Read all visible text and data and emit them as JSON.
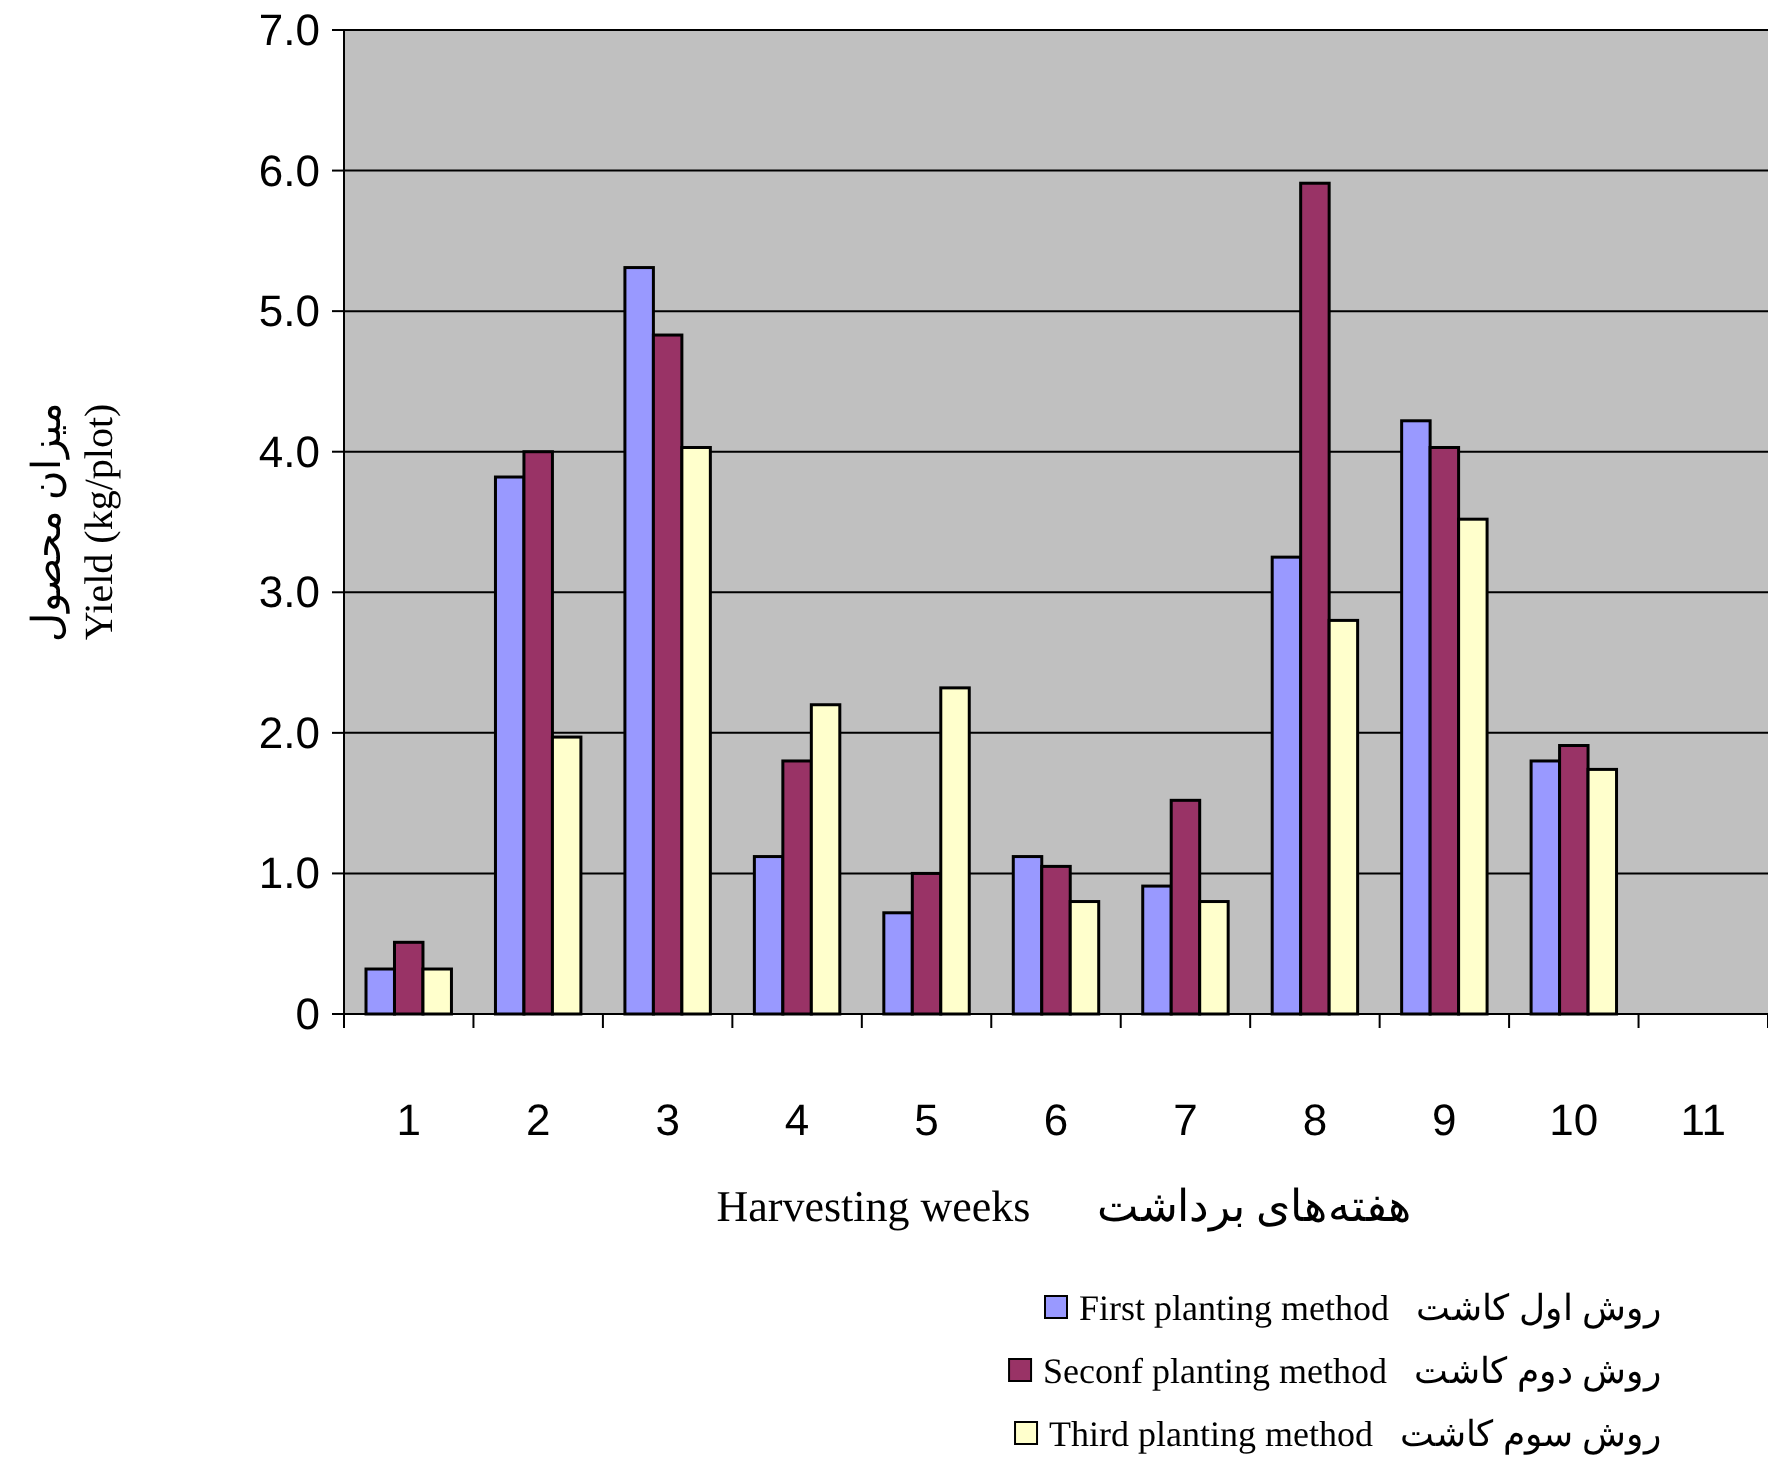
{
  "chart_data": {
    "type": "bar",
    "categories": [
      "1",
      "2",
      "3",
      "4",
      "5",
      "6",
      "7",
      "8",
      "9",
      "10",
      "11"
    ],
    "xlabel": "Harvesting weeks      هفته‌های برداشت",
    "ylabel": "میزان محصول\nYield (kg/plot)",
    "ylim": [
      0,
      7
    ],
    "yticks": [
      0,
      {
        "value": 1,
        "label": "1.0"
      },
      {
        "value": 2,
        "label": "2.0"
      },
      {
        "value": 3,
        "label": "3.0"
      },
      {
        "value": 4,
        "label": "4.0"
      },
      {
        "value": 5,
        "label": "5.0"
      },
      {
        "value": 6,
        "label": "6.0"
      },
      {
        "value": 7,
        "label": "7.0"
      }
    ],
    "grid": "y",
    "legend": "bottom",
    "series": [
      {
        "name": "First planting method   روش اول کاشت",
        "color": "#9999ff",
        "values": [
          0.32,
          3.82,
          5.31,
          1.12,
          0.72,
          1.12,
          0.91,
          3.25,
          4.22,
          1.8,
          null
        ]
      },
      {
        "name": "Seconf planting method   روش دوم کاشت",
        "color": "#993366",
        "values": [
          0.51,
          4.0,
          4.83,
          1.8,
          1.0,
          1.05,
          1.52,
          5.91,
          4.03,
          1.91,
          null
        ]
      },
      {
        "name": "Third planting method   روش سوم کاشت",
        "color": "#ffffcc",
        "values": [
          0.32,
          1.97,
          4.03,
          2.2,
          2.32,
          0.8,
          0.8,
          2.8,
          3.52,
          1.74,
          null
        ]
      }
    ]
  }
}
